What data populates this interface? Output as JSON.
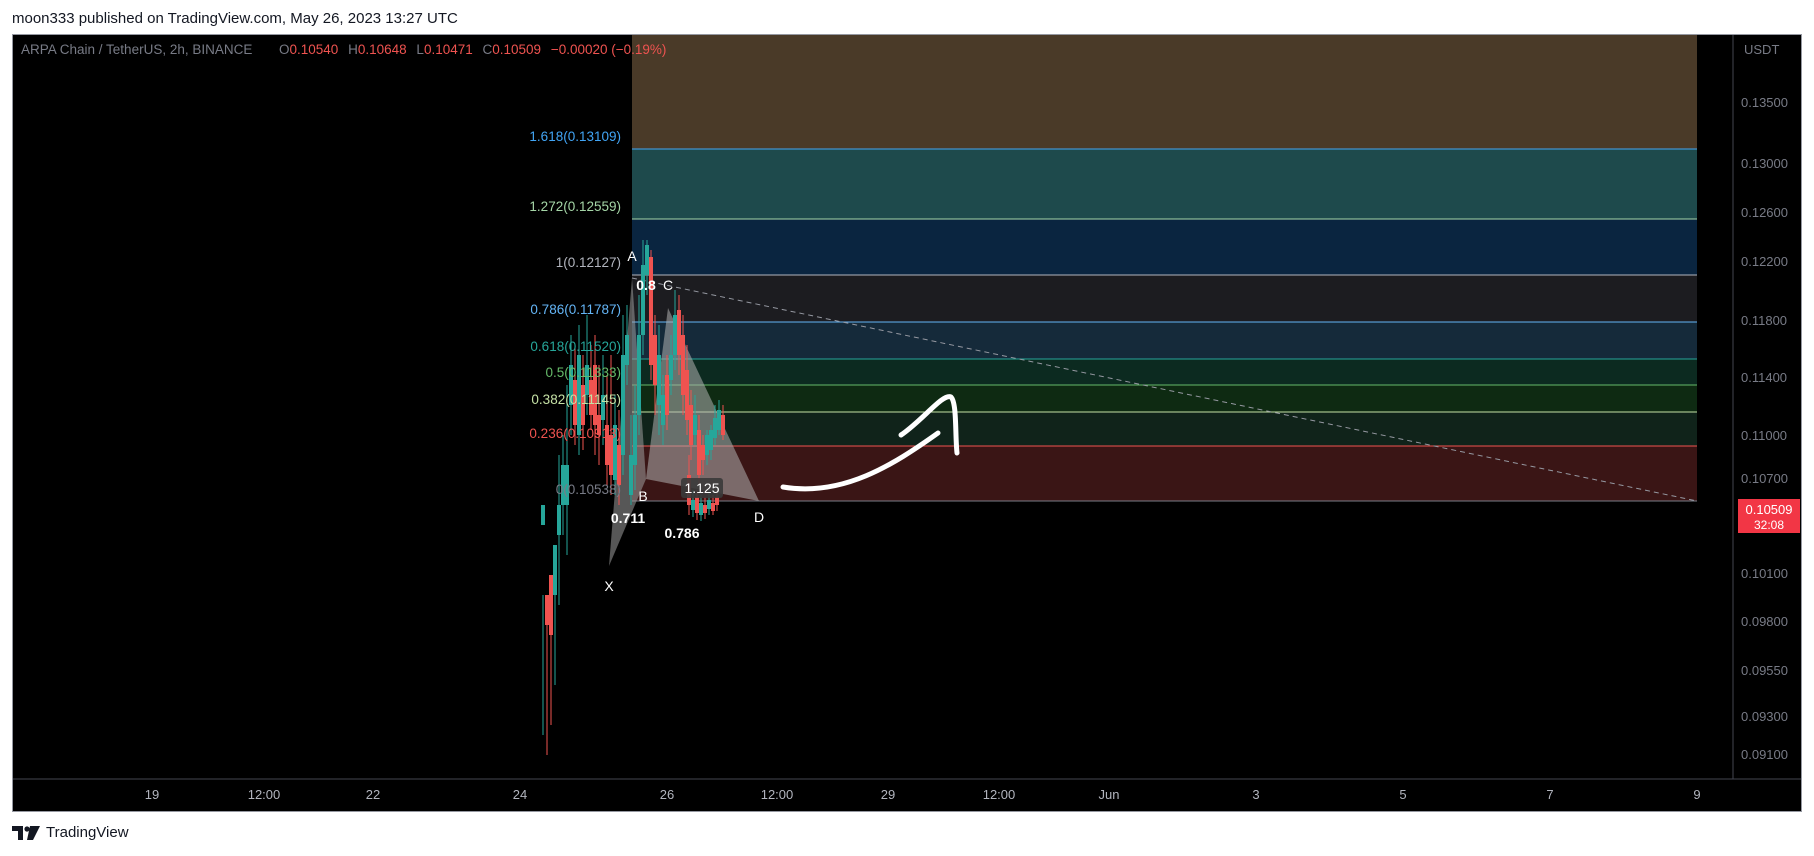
{
  "header": {
    "published": "moon333 published on TradingView.com, May 26, 2023 13:27 UTC"
  },
  "footer": {
    "brand": "TradingView"
  },
  "symbol_bar": {
    "symbol": "ARPA Chain / TetherUS, 2h, BINANCE",
    "o_label": "O",
    "o_value": "0.10540",
    "h_label": "H",
    "h_value": "0.10648",
    "l_label": "L",
    "l_value": "0.10471",
    "c_label": "C",
    "c_value": "0.10509",
    "change": "−0.00020 (−0.19%)"
  },
  "price_axis": {
    "currency": "USDT",
    "ticks": [
      "0.13500",
      "0.13000",
      "0.12600",
      "0.12200",
      "0.11800",
      "0.11400",
      "0.11000",
      "0.10700",
      "0.10100",
      "0.09800",
      "0.09550",
      "0.09300",
      "0.09100"
    ],
    "last_price": "0.10509",
    "countdown": "32:08"
  },
  "time_axis": {
    "ticks": [
      "19",
      "12:00",
      "22",
      "24",
      "26",
      "12:00",
      "29",
      "12:00",
      "Jun",
      "3",
      "5",
      "7",
      "9"
    ]
  },
  "fib_labels": [
    {
      "text": "1.618(0.13109)",
      "color": "#42a5f5"
    },
    {
      "text": "1.272(0.12559)",
      "color": "#a5d6a7"
    },
    {
      "text": "1(0.12127)",
      "color": "#b2b5be"
    },
    {
      "text": "0.786(0.11787)",
      "color": "#64b5f6"
    },
    {
      "text": "0.618(0.11520)",
      "color": "#26a69a"
    },
    {
      "text": "0.5(0.11333)",
      "color": "#66bb6a"
    },
    {
      "text": "0.382(0.11145)",
      "color": "#c5e1a5"
    },
    {
      "text": "0.236(0.10913)",
      "color": "#ef5350"
    },
    {
      "text": "0(0.10538)",
      "color": "#787b86"
    }
  ],
  "pattern_labels": {
    "x": "X",
    "a": "A",
    "b": "B",
    "c": "C",
    "d": "D",
    "ratio_xb": "0.711",
    "ratio_ac": "0.8",
    "ratio_xd": "0.786",
    "ratio_bd": "1.125"
  },
  "colors": {
    "up_candle": "#26a69a",
    "down_candle": "#ef5350",
    "background": "#000000",
    "price_badge": "#f23645"
  }
}
